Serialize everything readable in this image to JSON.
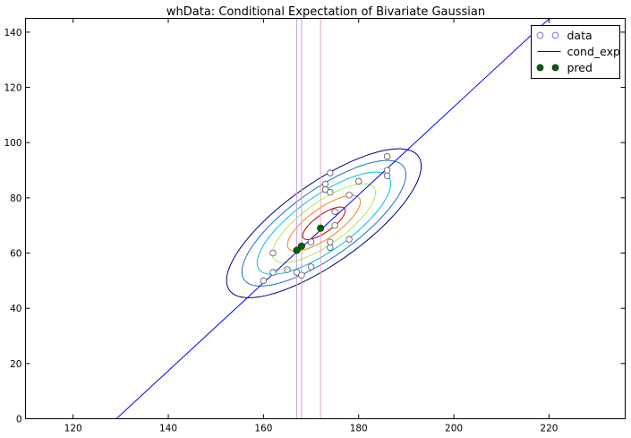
{
  "chart_data": {
    "type": "scatter",
    "title": "whData: Conditional Expectation of Bivariate Gaussian",
    "xlabel": "",
    "ylabel": "",
    "xlim": [
      110,
      236
    ],
    "ylim": [
      0,
      145
    ],
    "xticks": [
      120,
      140,
      160,
      180,
      200,
      220
    ],
    "yticks": [
      0,
      20,
      40,
      60,
      80,
      100,
      120,
      140
    ],
    "xtick_labels": [
      "120",
      "140",
      "160",
      "180",
      "200",
      "220"
    ],
    "ytick_labels": [
      "0",
      "20",
      "40",
      "60",
      "80",
      "100",
      "120",
      "140"
    ],
    "grid": false,
    "legend": {
      "placement": "top-right",
      "entries": [
        "data",
        "cond_exp",
        "pred"
      ]
    },
    "series": [
      {
        "name": "data",
        "kind": "scatter",
        "marker": "hollow-circle",
        "color": "#6b6bd6",
        "points": [
          [
            160,
            50
          ],
          [
            162,
            53
          ],
          [
            162,
            60
          ],
          [
            165,
            54
          ],
          [
            167,
            53
          ],
          [
            168,
            52
          ],
          [
            170,
            55
          ],
          [
            170,
            64
          ],
          [
            173,
            83
          ],
          [
            173,
            85
          ],
          [
            174,
            89
          ],
          [
            174,
            82
          ],
          [
            174,
            62
          ],
          [
            174,
            64
          ],
          [
            175,
            75
          ],
          [
            175,
            70
          ],
          [
            178,
            65
          ],
          [
            178,
            81
          ],
          [
            180,
            86
          ],
          [
            186,
            88
          ],
          [
            186,
            90
          ],
          [
            186,
            95
          ]
        ]
      },
      {
        "name": "cond_exp",
        "kind": "line",
        "color": "#0000ff",
        "points": [
          [
            129.1,
            0
          ],
          [
            220.1,
            145
          ]
        ]
      },
      {
        "name": "pred",
        "kind": "scatter",
        "marker": "filled-circle",
        "color": "#006400",
        "points": [
          [
            167,
            61
          ],
          [
            168,
            62.5
          ],
          [
            172,
            69
          ]
        ]
      }
    ],
    "vertical_lines": [
      {
        "x": 167,
        "color": "#c8a0d8"
      },
      {
        "x": 168,
        "color": "#c8a0d8"
      },
      {
        "x": 172,
        "color": "#e2a8b4"
      }
    ],
    "contours": {
      "center": [
        172.7,
        70.8
      ],
      "angle_deg": 55,
      "semi_major": [
        32,
        27,
        22,
        17,
        12,
        7
      ],
      "semi_minor": [
        11,
        9.2,
        7.5,
        5.8,
        4.1,
        2.4
      ],
      "colors": [
        "#000080",
        "#1c6cd6",
        "#00c0e0",
        "#a8f050",
        "#ff8010",
        "#c00000"
      ]
    }
  }
}
